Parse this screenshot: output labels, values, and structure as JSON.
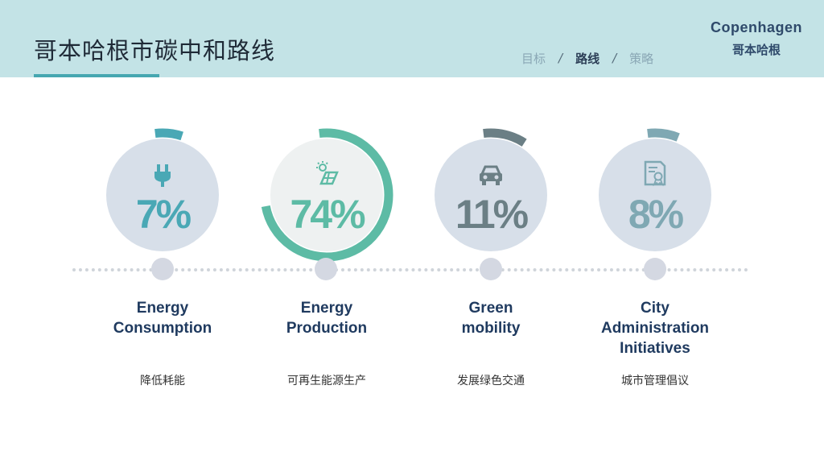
{
  "header": {
    "title": "哥本哈根市碳中和路线",
    "nav": [
      {
        "label": "目标",
        "active": false
      },
      {
        "label": "路线",
        "active": true
      },
      {
        "label": "策略",
        "active": false
      }
    ],
    "nav_separator": "/",
    "brand_en": "Copenhagen",
    "brand_cn": "哥本哈根"
  },
  "items": [
    {
      "label_line1": "Energy",
      "label_line2": "Consumption",
      "label_line3": "",
      "sub": "降低耗能",
      "percent": 7,
      "percent_label": "7%",
      "color": "#4aa8b5",
      "icon": "plug-icon"
    },
    {
      "label_line1": "Energy",
      "label_line2": "Production",
      "label_line3": "",
      "sub": "可再生能源生产",
      "percent": 74,
      "percent_label": "74%",
      "color": "#5dbba5",
      "icon": "solar-icon"
    },
    {
      "label_line1": "Green",
      "label_line2": "mobility",
      "label_line3": "",
      "sub": "发展绿色交通",
      "percent": 11,
      "percent_label": "11%",
      "color": "#6b7f85",
      "icon": "car-icon"
    },
    {
      "label_line1": "City",
      "label_line2": "Administration",
      "label_line3": "Initiatives",
      "sub": "城市管理倡议",
      "percent": 8,
      "percent_label": "8%",
      "color": "#7fa8b3",
      "icon": "certificate-icon"
    }
  ]
}
